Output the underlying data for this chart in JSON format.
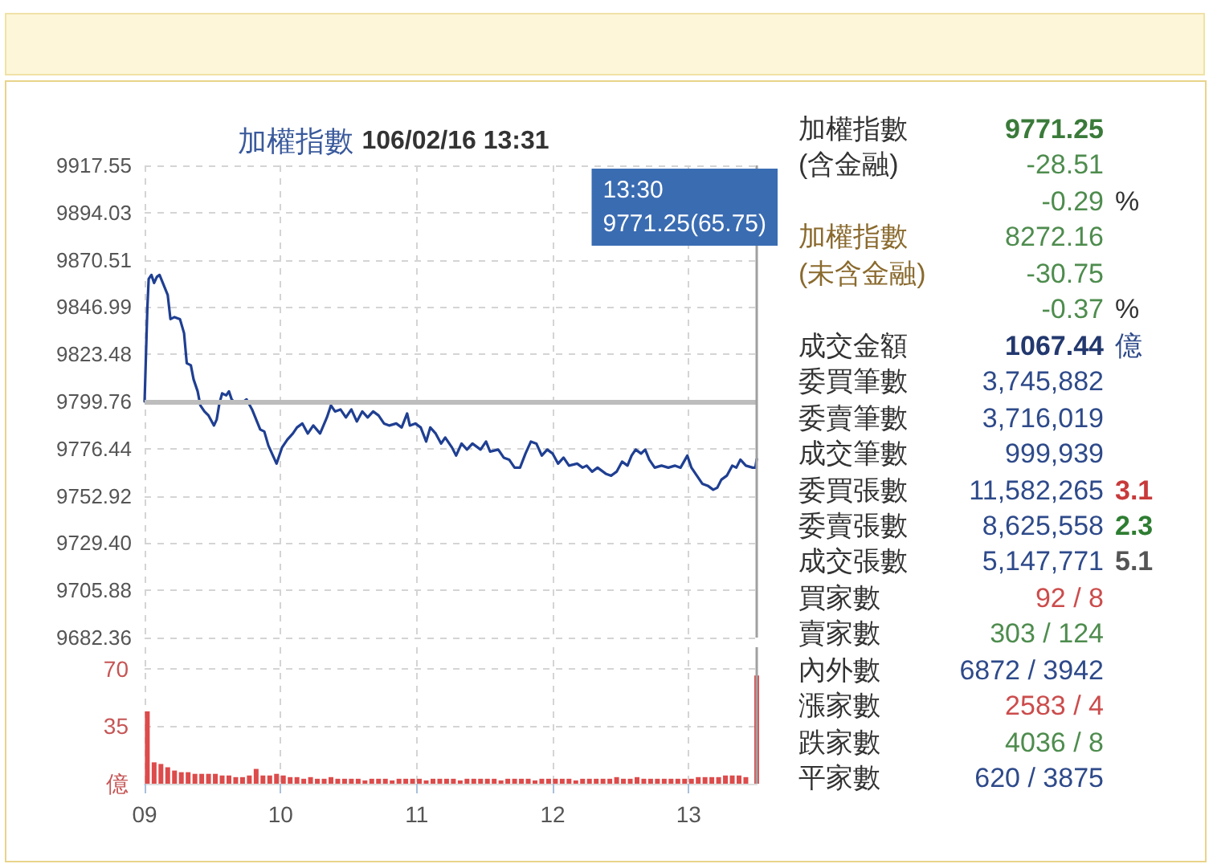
{
  "chart_data": [
    {
      "type": "line",
      "title": "加權指數 106/02/16 13:31",
      "color": "#1f3f92",
      "x": [
        9,
        9.02,
        9.03,
        9.05,
        9.07,
        9.09,
        9.11,
        9.14,
        9.17,
        9.19,
        9.22,
        9.26,
        9.29,
        9.31,
        9.34,
        9.36,
        9.39,
        9.41,
        9.44,
        9.47,
        9.51,
        9.53,
        9.55,
        9.57,
        9.6,
        9.62,
        9.64,
        9.67,
        9.71,
        9.75,
        9.79,
        9.85,
        9.88,
        9.91,
        9.95,
        9.97,
        10.01,
        10.05,
        10.09,
        10.12,
        10.16,
        10.2,
        10.24,
        10.29,
        10.34,
        10.37,
        10.4,
        10.44,
        10.48,
        10.52,
        10.56,
        10.6,
        10.64,
        10.68,
        10.72,
        10.76,
        10.8,
        10.85,
        10.89,
        10.93,
        10.95,
        10.99,
        11.03,
        11.07,
        11.1,
        11.14,
        11.18,
        11.21,
        11.26,
        11.29,
        11.33,
        11.37,
        11.41,
        11.47,
        11.51,
        11.54,
        11.6,
        11.64,
        11.68,
        11.72,
        11.76,
        11.8,
        11.84,
        11.88,
        11.92,
        11.96,
        12,
        12.04,
        12.08,
        12.12,
        12.18,
        12.22,
        12.25,
        12.29,
        12.33,
        12.39,
        12.43,
        12.47,
        12.51,
        12.55,
        12.58,
        12.61,
        12.65,
        12.68,
        12.71,
        12.75,
        12.8,
        12.85,
        12.9,
        12.94,
        12.99,
        13.02,
        13.06,
        13.1,
        13.14,
        13.18,
        13.21,
        13.24,
        13.28,
        13.32,
        13.35,
        13.38,
        13.42,
        13.47,
        13.49,
        13.5
      ],
      "values": [
        9800,
        9846,
        9861,
        9863,
        9859,
        9862,
        9863,
        9858,
        9853,
        9841,
        9842,
        9841,
        9834,
        9819,
        9818,
        9811,
        9805,
        9798,
        9795,
        9793,
        9788,
        9791,
        9799,
        9804,
        9803,
        9805,
        9801,
        9799,
        9799,
        9801,
        9796,
        9786,
        9785,
        9778,
        9772,
        9769,
        9777,
        9781,
        9784,
        9787,
        9789,
        9784,
        9788,
        9784,
        9792,
        9798,
        9795,
        9796,
        9792,
        9796,
        9790,
        9795,
        9792,
        9795,
        9793,
        9789,
        9788,
        9789,
        9787,
        9794,
        9788,
        9789,
        9787,
        9780,
        9787,
        9784,
        9779,
        9782,
        9777,
        9773,
        9779,
        9776,
        9779,
        9776,
        9780,
        9775,
        9776,
        9772,
        9771,
        9767,
        9767,
        9774,
        9780,
        9779,
        9773,
        9776,
        9774,
        9769,
        9772,
        9768,
        9769,
        9767,
        9768,
        9765,
        9767,
        9764,
        9763,
        9765,
        9770,
        9768,
        9773,
        9776,
        9774,
        9776,
        9771,
        9767,
        9768,
        9767,
        9768,
        9767,
        9773,
        9767,
        9763,
        9759,
        9758,
        9756,
        9757,
        9761,
        9763,
        9768,
        9767,
        9771,
        9768,
        9767,
        9767,
        9771.25
      ],
      "xlim": [
        9,
        13.5
      ],
      "xticks": [
        9,
        10,
        11,
        12,
        13
      ],
      "ylim": [
        9682.36,
        9917.55
      ],
      "yticks": [
        9682.36,
        9705.88,
        {
          "value": 9729.4,
          "label": "9729.40"
        },
        9752.92,
        9776.44,
        9799.76,
        9823.48,
        9846.99,
        9870.51,
        9894.03,
        9917.55
      ],
      "grid": true,
      "marker": "none",
      "tick_labels": "y",
      "ref_lines": [
        {
          "axis": "y",
          "value": 9799.76,
          "color": "#bdbdbd"
        },
        {
          "axis": "x",
          "value": 13.5,
          "label": "13:30\n9771.25(65.75)",
          "color": "#a0a0a0"
        }
      ]
    },
    {
      "type": "bar",
      "color": "#dd4b4b",
      "x": [
        9.02,
        9.07,
        9.12,
        9.17,
        9.22,
        9.27,
        9.32,
        9.37,
        9.42,
        9.47,
        9.52,
        9.57,
        9.62,
        9.67,
        9.72,
        9.77,
        9.82,
        9.87,
        9.92,
        9.97,
        10.02,
        10.07,
        10.12,
        10.17,
        10.22,
        10.27,
        10.32,
        10.37,
        10.42,
        10.47,
        10.52,
        10.57,
        10.62,
        10.67,
        10.72,
        10.77,
        10.82,
        10.87,
        10.92,
        10.97,
        11.02,
        11.07,
        11.12,
        11.17,
        11.22,
        11.27,
        11.32,
        11.37,
        11.42,
        11.47,
        11.52,
        11.57,
        11.62,
        11.67,
        11.72,
        11.77,
        11.82,
        11.87,
        11.92,
        11.97,
        12.02,
        12.07,
        12.12,
        12.17,
        12.22,
        12.27,
        12.32,
        12.37,
        12.42,
        12.47,
        12.52,
        12.57,
        12.62,
        12.67,
        12.72,
        12.77,
        12.82,
        12.87,
        12.92,
        12.97,
        13.02,
        13.07,
        13.12,
        13.17,
        13.22,
        13.27,
        13.32,
        13.37,
        13.42,
        13.5
      ],
      "values": [
        44,
        13,
        12,
        10,
        8,
        7,
        7,
        6,
        6,
        6,
        6,
        5,
        5,
        4,
        4,
        5,
        9,
        5,
        5,
        6,
        5,
        4,
        4,
        3,
        4,
        3,
        3,
        4,
        3,
        3,
        3,
        3,
        2,
        3,
        3,
        3,
        2,
        3,
        3,
        3,
        3,
        2,
        3,
        3,
        3,
        3,
        2,
        3,
        3,
        3,
        3,
        3,
        2,
        3,
        3,
        3,
        3,
        2,
        3,
        3,
        3,
        3,
        3,
        2,
        3,
        3,
        3,
        3,
        3,
        4,
        3,
        3,
        4,
        3,
        3,
        3,
        3,
        3,
        3,
        3,
        3,
        4,
        4,
        4,
        4,
        5,
        5,
        5,
        4,
        65.75
      ],
      "xlim": [
        9,
        13.5
      ],
      "xticks": [
        {
          "value": 9,
          "label": "09"
        },
        10,
        11,
        12,
        13
      ],
      "ylim": [
        0,
        83
      ],
      "yticks": [
        {
          "value": 0,
          "label": "億"
        },
        35,
        70
      ],
      "grid": true,
      "ref_lines": [
        {
          "axis": "x",
          "value": 13.5,
          "color": "#a0a0a0"
        }
      ]
    },
    {
      "type": "other",
      "annotations": [
        "加權指數",
        "9771.25",
        "(含金融)",
        "-28.51",
        "-0.29",
        "%",
        "加權指數",
        "8272.16",
        "(未含金融)",
        "-30.75",
        "-0.37",
        "%",
        "成交金額",
        "1067.44",
        "億",
        "委買筆數",
        "3,745,882",
        "委賣筆數",
        "3,716,019",
        "成交筆數",
        "999,939",
        "委買張數",
        "11,582,265",
        "3.1",
        "委賣張數",
        "8,625,558",
        "2.3",
        "成交張數",
        "5,147,771",
        "5.1",
        "買家數",
        "92 / 8",
        "賣家數",
        "303 / 124",
        "內外數",
        "6872 / 3942",
        "漲家數",
        "2583 / 4",
        "跌家數",
        "4036 / 8",
        "平家數",
        "620 / 3875"
      ]
    }
  ]
}
